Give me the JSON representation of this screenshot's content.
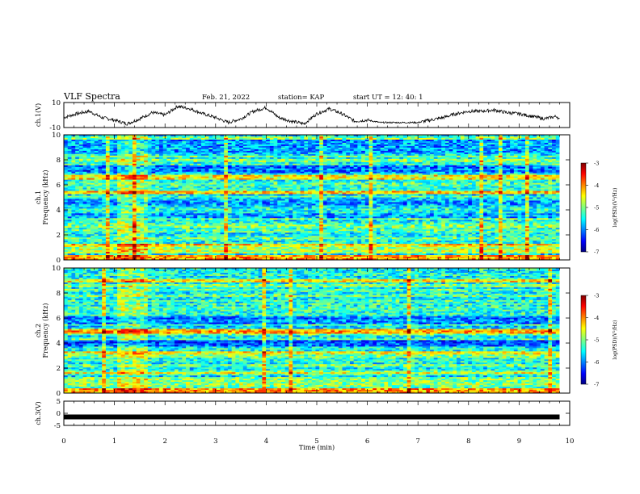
{
  "header": {
    "title": "VLF Spectra",
    "date": "Feb. 21, 2022",
    "station": "station= KAP",
    "start": "start  UT =   12: 40: 1"
  },
  "colors": {
    "jet": [
      "#00007f",
      "#0000ff",
      "#007fff",
      "#00ffff",
      "#7fff7f",
      "#ffff00",
      "#ff7f00",
      "#ff0000",
      "#7f0000"
    ]
  },
  "chart_data": [
    {
      "type": "line",
      "panel": "ch1",
      "ylabel": "ch.1(V)",
      "ylim": [
        -10,
        10
      ],
      "yticks": [
        "10",
        "-10"
      ],
      "xlim": [
        0,
        10
      ],
      "x": [
        0,
        0.25,
        0.5,
        0.75,
        1,
        1.25,
        1.5,
        1.75,
        2,
        2.25,
        2.5,
        2.75,
        3,
        3.25,
        3.5,
        3.75,
        4,
        4.25,
        4.5,
        4.75,
        5,
        5.25,
        5.5,
        5.75,
        6,
        6.25,
        6.5,
        6.75,
        7,
        7.25,
        7.5,
        7.75,
        8,
        8.25,
        8.5,
        8.75,
        9,
        9.25,
        9.5,
        9.75,
        9.8
      ],
      "y": [
        -2,
        1,
        3,
        -2,
        -4,
        -7,
        -3,
        2,
        0,
        7,
        5,
        1,
        -2,
        -6,
        -3,
        3,
        6,
        -2,
        -5,
        -7,
        1,
        5,
        1,
        -5,
        -4,
        -6,
        -6,
        -6,
        -6,
        -4,
        -2,
        1,
        3,
        3,
        4,
        2,
        1,
        -1,
        -3,
        -1,
        -4
      ]
    },
    {
      "type": "heatmap",
      "panel": "ch1-spectrogram",
      "ylabel": "ch.1\nFrequency (kHz)",
      "ylim": [
        0,
        10
      ],
      "yticks": [
        "0",
        "2",
        "4",
        "6",
        "8",
        "10"
      ],
      "xlim": [
        0,
        10
      ],
      "colorbar": {
        "range": [
          -7,
          -3
        ],
        "ticks": [
          "-3",
          "-4",
          "-5",
          "-6",
          "-7"
        ],
        "label": "log(PSD)(V²/Hz)"
      }
    },
    {
      "type": "heatmap",
      "panel": "ch2-spectrogram",
      "ylabel": "ch.2\nFrequency (kHz)",
      "ylim": [
        0,
        10
      ],
      "yticks": [
        "0",
        "2",
        "4",
        "6",
        "8",
        "10"
      ],
      "xlim": [
        0,
        10
      ],
      "colorbar": {
        "range": [
          -7,
          -3
        ],
        "ticks": [
          "-3",
          "-4",
          "-5",
          "-6",
          "-7"
        ],
        "label": "log(PSD)(V²/Hz)"
      }
    },
    {
      "type": "line",
      "panel": "ch3",
      "ylabel": "ch.3(V)",
      "ylim": [
        -5,
        5
      ],
      "yticks": [
        "5",
        "0",
        "-5"
      ],
      "xlim": [
        0,
        10
      ],
      "xticks": [
        "0",
        "1",
        "2",
        "3",
        "4",
        "5",
        "6",
        "7",
        "8",
        "9",
        "10"
      ],
      "xlabel": "Time (min)",
      "x": [
        0,
        9.8
      ],
      "y": [
        -1.5,
        -1.5
      ]
    }
  ]
}
